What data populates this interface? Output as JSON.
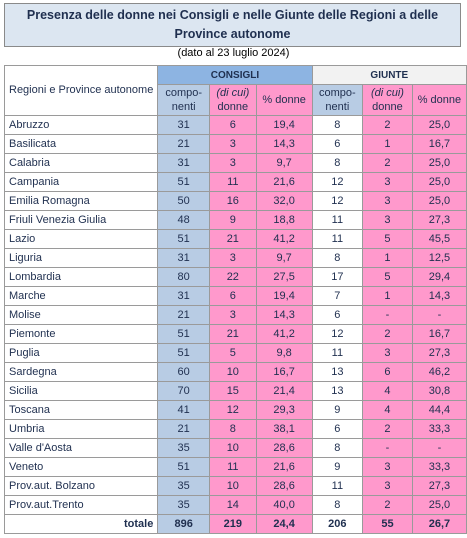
{
  "title": "Presenza delle donne nei Consigli e nelle Giunte delle Regioni a delle Province autonome",
  "subtitle": "(dato al 23 luglio 2024)",
  "header": {
    "region": "Regioni e Province autonome",
    "groups": [
      "CONSIGLI",
      "GIUNTE"
    ],
    "columns": [
      [
        "compo-",
        "nenti"
      ],
      [
        "(di cui)",
        "donne"
      ],
      [
        "% donne"
      ],
      [
        "compo-",
        "nenti"
      ],
      [
        "(di cui)",
        "donne"
      ],
      [
        "% donne"
      ]
    ]
  },
  "table": {
    "rows": [
      [
        "Abruzzo",
        "31",
        "6",
        "19,4",
        "8",
        "2",
        "25,0"
      ],
      [
        "Basilicata",
        "21",
        "3",
        "14,3",
        "6",
        "1",
        "16,7"
      ],
      [
        "Calabria",
        "31",
        "3",
        "9,7",
        "8",
        "2",
        "25,0"
      ],
      [
        "Campania",
        "51",
        "11",
        "21,6",
        "12",
        "3",
        "25,0"
      ],
      [
        "Emilia Romagna",
        "50",
        "16",
        "32,0",
        "12",
        "3",
        "25,0"
      ],
      [
        "Friuli Venezia Giulia",
        "48",
        "9",
        "18,8",
        "11",
        "3",
        "27,3"
      ],
      [
        "Lazio",
        "51",
        "21",
        "41,2",
        "11",
        "5",
        "45,5"
      ],
      [
        "Liguria",
        "31",
        "3",
        "9,7",
        "8",
        "1",
        "12,5"
      ],
      [
        "Lombardia",
        "80",
        "22",
        "27,5",
        "17",
        "5",
        "29,4"
      ],
      [
        "Marche",
        "31",
        "6",
        "19,4",
        "7",
        "1",
        "14,3"
      ],
      [
        "Molise",
        "21",
        "3",
        "14,3",
        "6",
        "-",
        "-"
      ],
      [
        "Piemonte",
        "51",
        "21",
        "41,2",
        "12",
        "2",
        "16,7"
      ],
      [
        "Puglia",
        "51",
        "5",
        "9,8",
        "11",
        "3",
        "27,3"
      ],
      [
        "Sardegna",
        "60",
        "10",
        "16,7",
        "13",
        "6",
        "46,2"
      ],
      [
        "Sicilia",
        "70",
        "15",
        "21,4",
        "13",
        "4",
        "30,8"
      ],
      [
        "Toscana",
        "41",
        "12",
        "29,3",
        "9",
        "4",
        "44,4"
      ],
      [
        "Umbria",
        "21",
        "8",
        "38,1",
        "6",
        "2",
        "33,3"
      ],
      [
        "Valle d'Aosta",
        "35",
        "10",
        "28,6",
        "8",
        "-",
        "-"
      ],
      [
        "Veneto",
        "51",
        "11",
        "21,6",
        "9",
        "3",
        "33,3"
      ],
      [
        "Prov.aut. Bolzano",
        "35",
        "10",
        "28,6",
        "11",
        "3",
        "27,3"
      ],
      [
        "Prov.aut.Trento",
        "35",
        "14",
        "40,0",
        "8",
        "2",
        "25,0"
      ]
    ],
    "total": [
      "totale",
      "896",
      "219",
      "24,4",
      "206",
      "55",
      "26,7"
    ]
  }
}
